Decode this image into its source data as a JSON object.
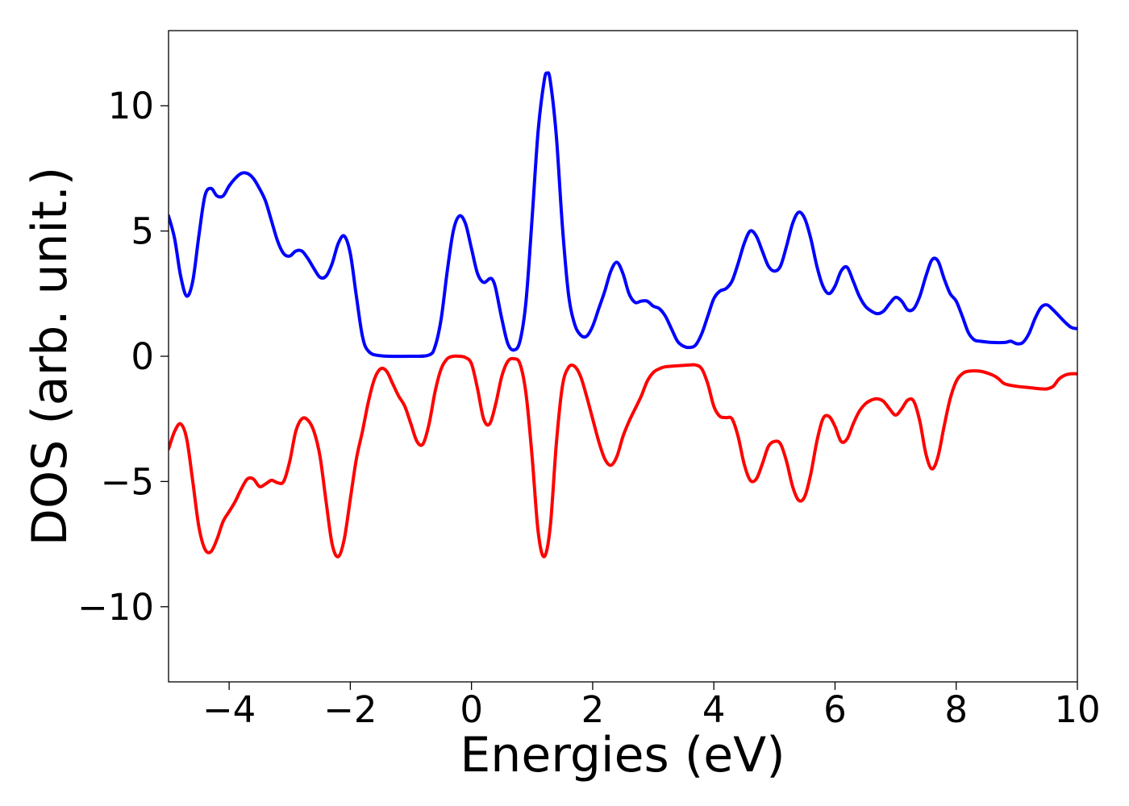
{
  "chart_data": {
    "type": "line",
    "title": "",
    "xlabel": "Energies (eV)",
    "ylabel": "DOS (arb. unit.)",
    "xlim": [
      -5,
      10
    ],
    "ylim": [
      -13,
      13
    ],
    "grid": false,
    "legend": "none",
    "x_ticks": [
      -4,
      -2,
      0,
      2,
      4,
      6,
      8,
      10
    ],
    "x_tick_labels": [
      "−4",
      "−2",
      "0",
      "2",
      "4",
      "6",
      "8",
      "10"
    ],
    "y_ticks": [
      -10,
      -5,
      0,
      5,
      10
    ],
    "y_tick_labels": [
      "−10",
      "−5",
      "0",
      "5",
      "10"
    ],
    "series": [
      {
        "color": "#0000ff",
        "points": [
          [
            -5.0,
            5.6
          ],
          [
            -4.9,
            4.7
          ],
          [
            -4.8,
            3.2
          ],
          [
            -4.7,
            2.4
          ],
          [
            -4.6,
            3.0
          ],
          [
            -4.5,
            4.8
          ],
          [
            -4.4,
            6.4
          ],
          [
            -4.3,
            6.7
          ],
          [
            -4.2,
            6.4
          ],
          [
            -4.1,
            6.4
          ],
          [
            -4.0,
            6.8
          ],
          [
            -3.9,
            7.1
          ],
          [
            -3.8,
            7.3
          ],
          [
            -3.7,
            7.3
          ],
          [
            -3.6,
            7.1
          ],
          [
            -3.5,
            6.7
          ],
          [
            -3.4,
            6.2
          ],
          [
            -3.3,
            5.4
          ],
          [
            -3.2,
            4.6
          ],
          [
            -3.1,
            4.1
          ],
          [
            -3.0,
            4.0
          ],
          [
            -2.9,
            4.2
          ],
          [
            -2.8,
            4.2
          ],
          [
            -2.7,
            3.9
          ],
          [
            -2.6,
            3.5
          ],
          [
            -2.5,
            3.15
          ],
          [
            -2.4,
            3.2
          ],
          [
            -2.3,
            3.7
          ],
          [
            -2.2,
            4.5
          ],
          [
            -2.1,
            4.8
          ],
          [
            -2.0,
            4.1
          ],
          [
            -1.9,
            2.4
          ],
          [
            -1.8,
            0.8
          ],
          [
            -1.7,
            0.2
          ],
          [
            -1.5,
            0.02
          ],
          [
            -1.0,
            0.0
          ],
          [
            -0.7,
            0.05
          ],
          [
            -0.6,
            0.4
          ],
          [
            -0.5,
            1.5
          ],
          [
            -0.4,
            3.4
          ],
          [
            -0.3,
            5.0
          ],
          [
            -0.2,
            5.6
          ],
          [
            -0.1,
            5.3
          ],
          [
            0.0,
            4.3
          ],
          [
            0.1,
            3.3
          ],
          [
            0.2,
            2.95
          ],
          [
            0.3,
            3.1
          ],
          [
            0.35,
            3.05
          ],
          [
            0.4,
            2.7
          ],
          [
            0.5,
            1.5
          ],
          [
            0.6,
            0.5
          ],
          [
            0.7,
            0.25
          ],
          [
            0.8,
            0.6
          ],
          [
            0.9,
            2.2
          ],
          [
            1.0,
            5.5
          ],
          [
            1.1,
            9.0
          ],
          [
            1.2,
            11.0
          ],
          [
            1.25,
            11.3
          ],
          [
            1.3,
            11.0
          ],
          [
            1.4,
            8.8
          ],
          [
            1.5,
            5.2
          ],
          [
            1.6,
            2.5
          ],
          [
            1.7,
            1.3
          ],
          [
            1.8,
            0.85
          ],
          [
            1.9,
            0.8
          ],
          [
            2.0,
            1.2
          ],
          [
            2.1,
            1.9
          ],
          [
            2.2,
            2.6
          ],
          [
            2.3,
            3.4
          ],
          [
            2.4,
            3.75
          ],
          [
            2.5,
            3.3
          ],
          [
            2.6,
            2.5
          ],
          [
            2.7,
            2.15
          ],
          [
            2.8,
            2.2
          ],
          [
            2.9,
            2.2
          ],
          [
            3.0,
            2.0
          ],
          [
            3.1,
            1.9
          ],
          [
            3.2,
            1.6
          ],
          [
            3.3,
            1.1
          ],
          [
            3.4,
            0.6
          ],
          [
            3.5,
            0.4
          ],
          [
            3.6,
            0.35
          ],
          [
            3.7,
            0.45
          ],
          [
            3.8,
            0.9
          ],
          [
            3.9,
            1.6
          ],
          [
            4.0,
            2.3
          ],
          [
            4.1,
            2.6
          ],
          [
            4.2,
            2.7
          ],
          [
            4.3,
            3.0
          ],
          [
            4.4,
            3.7
          ],
          [
            4.5,
            4.5
          ],
          [
            4.6,
            5.0
          ],
          [
            4.7,
            4.8
          ],
          [
            4.8,
            4.2
          ],
          [
            4.9,
            3.6
          ],
          [
            5.0,
            3.4
          ],
          [
            5.1,
            3.6
          ],
          [
            5.2,
            4.4
          ],
          [
            5.3,
            5.3
          ],
          [
            5.4,
            5.75
          ],
          [
            5.5,
            5.5
          ],
          [
            5.6,
            4.7
          ],
          [
            5.7,
            3.6
          ],
          [
            5.8,
            2.8
          ],
          [
            5.9,
            2.5
          ],
          [
            6.0,
            2.8
          ],
          [
            6.1,
            3.4
          ],
          [
            6.2,
            3.55
          ],
          [
            6.3,
            3.0
          ],
          [
            6.4,
            2.4
          ],
          [
            6.5,
            2.0
          ],
          [
            6.6,
            1.8
          ],
          [
            6.7,
            1.7
          ],
          [
            6.8,
            1.8
          ],
          [
            6.9,
            2.1
          ],
          [
            7.0,
            2.35
          ],
          [
            7.1,
            2.2
          ],
          [
            7.2,
            1.85
          ],
          [
            7.3,
            1.9
          ],
          [
            7.4,
            2.4
          ],
          [
            7.5,
            3.2
          ],
          [
            7.6,
            3.85
          ],
          [
            7.7,
            3.8
          ],
          [
            7.8,
            3.1
          ],
          [
            7.9,
            2.5
          ],
          [
            8.0,
            2.2
          ],
          [
            8.1,
            1.6
          ],
          [
            8.2,
            0.95
          ],
          [
            8.3,
            0.65
          ],
          [
            8.4,
            0.6
          ],
          [
            8.6,
            0.55
          ],
          [
            8.8,
            0.55
          ],
          [
            8.9,
            0.6
          ],
          [
            9.0,
            0.5
          ],
          [
            9.1,
            0.55
          ],
          [
            9.2,
            0.9
          ],
          [
            9.3,
            1.5
          ],
          [
            9.4,
            1.95
          ],
          [
            9.5,
            2.05
          ],
          [
            9.6,
            1.85
          ],
          [
            9.7,
            1.6
          ],
          [
            9.8,
            1.35
          ],
          [
            9.9,
            1.15
          ],
          [
            10.0,
            1.1
          ]
        ]
      },
      {
        "color": "#ff0000",
        "points": [
          [
            -5.0,
            -3.7
          ],
          [
            -4.9,
            -3.0
          ],
          [
            -4.8,
            -2.7
          ],
          [
            -4.7,
            -3.3
          ],
          [
            -4.6,
            -5.0
          ],
          [
            -4.5,
            -6.8
          ],
          [
            -4.4,
            -7.7
          ],
          [
            -4.3,
            -7.8
          ],
          [
            -4.2,
            -7.3
          ],
          [
            -4.1,
            -6.6
          ],
          [
            -4.0,
            -6.2
          ],
          [
            -3.9,
            -5.8
          ],
          [
            -3.8,
            -5.3
          ],
          [
            -3.7,
            -4.9
          ],
          [
            -3.6,
            -4.9
          ],
          [
            -3.5,
            -5.2
          ],
          [
            -3.4,
            -5.1
          ],
          [
            -3.3,
            -4.95
          ],
          [
            -3.2,
            -5.05
          ],
          [
            -3.1,
            -5.0
          ],
          [
            -3.0,
            -4.2
          ],
          [
            -2.9,
            -3.0
          ],
          [
            -2.8,
            -2.5
          ],
          [
            -2.7,
            -2.55
          ],
          [
            -2.6,
            -3.0
          ],
          [
            -2.5,
            -4.0
          ],
          [
            -2.4,
            -5.8
          ],
          [
            -2.3,
            -7.5
          ],
          [
            -2.2,
            -8.0
          ],
          [
            -2.1,
            -7.3
          ],
          [
            -2.0,
            -5.7
          ],
          [
            -1.9,
            -4.1
          ],
          [
            -1.8,
            -3.0
          ],
          [
            -1.7,
            -1.8
          ],
          [
            -1.6,
            -0.9
          ],
          [
            -1.5,
            -0.5
          ],
          [
            -1.4,
            -0.6
          ],
          [
            -1.3,
            -1.1
          ],
          [
            -1.2,
            -1.6
          ],
          [
            -1.1,
            -2.0
          ],
          [
            -1.0,
            -2.7
          ],
          [
            -0.9,
            -3.4
          ],
          [
            -0.8,
            -3.5
          ],
          [
            -0.7,
            -2.7
          ],
          [
            -0.6,
            -1.4
          ],
          [
            -0.5,
            -0.5
          ],
          [
            -0.4,
            -0.1
          ],
          [
            -0.3,
            0.0
          ],
          [
            -0.2,
            0.0
          ],
          [
            -0.1,
            -0.05
          ],
          [
            0.0,
            -0.3
          ],
          [
            0.1,
            -1.3
          ],
          [
            0.2,
            -2.5
          ],
          [
            0.3,
            -2.7
          ],
          [
            0.4,
            -1.9
          ],
          [
            0.5,
            -0.8
          ],
          [
            0.6,
            -0.2
          ],
          [
            0.7,
            -0.1
          ],
          [
            0.8,
            -0.3
          ],
          [
            0.9,
            -1.5
          ],
          [
            1.0,
            -4.0
          ],
          [
            1.1,
            -7.0
          ],
          [
            1.2,
            -8.0
          ],
          [
            1.3,
            -6.8
          ],
          [
            1.4,
            -3.5
          ],
          [
            1.5,
            -1.2
          ],
          [
            1.6,
            -0.45
          ],
          [
            1.7,
            -0.4
          ],
          [
            1.8,
            -0.8
          ],
          [
            1.9,
            -1.6
          ],
          [
            2.0,
            -2.5
          ],
          [
            2.1,
            -3.4
          ],
          [
            2.2,
            -4.1
          ],
          [
            2.3,
            -4.35
          ],
          [
            2.4,
            -4.0
          ],
          [
            2.5,
            -3.2
          ],
          [
            2.6,
            -2.6
          ],
          [
            2.7,
            -2.1
          ],
          [
            2.8,
            -1.6
          ],
          [
            2.9,
            -1.0
          ],
          [
            3.0,
            -0.65
          ],
          [
            3.1,
            -0.5
          ],
          [
            3.2,
            -0.42
          ],
          [
            3.4,
            -0.38
          ],
          [
            3.6,
            -0.35
          ],
          [
            3.7,
            -0.35
          ],
          [
            3.8,
            -0.5
          ],
          [
            3.9,
            -1.1
          ],
          [
            4.0,
            -2.0
          ],
          [
            4.1,
            -2.4
          ],
          [
            4.2,
            -2.45
          ],
          [
            4.3,
            -2.5
          ],
          [
            4.4,
            -3.2
          ],
          [
            4.5,
            -4.3
          ],
          [
            4.6,
            -4.95
          ],
          [
            4.7,
            -4.9
          ],
          [
            4.8,
            -4.3
          ],
          [
            4.9,
            -3.6
          ],
          [
            5.0,
            -3.4
          ],
          [
            5.1,
            -3.5
          ],
          [
            5.2,
            -4.2
          ],
          [
            5.3,
            -5.2
          ],
          [
            5.4,
            -5.75
          ],
          [
            5.5,
            -5.6
          ],
          [
            5.6,
            -4.7
          ],
          [
            5.7,
            -3.4
          ],
          [
            5.8,
            -2.5
          ],
          [
            5.9,
            -2.4
          ],
          [
            6.0,
            -2.8
          ],
          [
            6.1,
            -3.4
          ],
          [
            6.2,
            -3.3
          ],
          [
            6.3,
            -2.7
          ],
          [
            6.4,
            -2.2
          ],
          [
            6.5,
            -1.9
          ],
          [
            6.6,
            -1.75
          ],
          [
            6.7,
            -1.7
          ],
          [
            6.8,
            -1.8
          ],
          [
            6.9,
            -2.1
          ],
          [
            7.0,
            -2.35
          ],
          [
            7.1,
            -2.1
          ],
          [
            7.2,
            -1.75
          ],
          [
            7.3,
            -1.8
          ],
          [
            7.4,
            -2.6
          ],
          [
            7.5,
            -3.9
          ],
          [
            7.6,
            -4.5
          ],
          [
            7.7,
            -4.0
          ],
          [
            7.8,
            -2.8
          ],
          [
            7.9,
            -1.7
          ],
          [
            8.0,
            -1.0
          ],
          [
            8.1,
            -0.7
          ],
          [
            8.2,
            -0.6
          ],
          [
            8.4,
            -0.6
          ],
          [
            8.6,
            -0.75
          ],
          [
            8.7,
            -0.9
          ],
          [
            8.8,
            -1.1
          ],
          [
            9.0,
            -1.2
          ],
          [
            9.2,
            -1.25
          ],
          [
            9.4,
            -1.3
          ],
          [
            9.5,
            -1.3
          ],
          [
            9.6,
            -1.2
          ],
          [
            9.7,
            -0.9
          ],
          [
            9.8,
            -0.75
          ],
          [
            9.9,
            -0.7
          ],
          [
            10.0,
            -0.7
          ]
        ]
      }
    ]
  }
}
